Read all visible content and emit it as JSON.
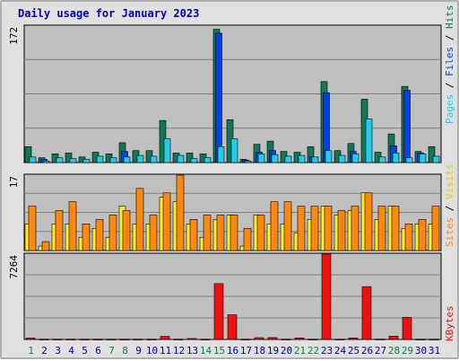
{
  "title": "Daily usage for January 2023",
  "colors": {
    "panel_bg": "#c0c0c0",
    "grid": "#7f7f7f",
    "hits": "#117755",
    "files": "#0044dd",
    "pages": "#22ccee",
    "visits": "#ff8811",
    "sites": "#ffee22",
    "kbytes": "#ee1111",
    "weekday_label": "#0000a0",
    "weekend_label": "#00863c"
  },
  "chart_data": [
    {
      "type": "bar",
      "panel": "top",
      "ymax_label": "172",
      "ymax": 172,
      "legend_side": "right",
      "legend": [
        "Pages",
        "Files",
        "Hits"
      ],
      "categories": [
        "1",
        "2",
        "3",
        "4",
        "5",
        "6",
        "7",
        "8",
        "9",
        "10",
        "11",
        "12",
        "13",
        "14",
        "15",
        "16",
        "17",
        "18",
        "19",
        "20",
        "21",
        "22",
        "23",
        "24",
        "25",
        "26",
        "27",
        "28",
        "29",
        "30",
        "31"
      ],
      "series": [
        {
          "name": "Hits",
          "values": [
            20,
            6,
            11,
            12,
            7,
            13,
            11,
            25,
            15,
            15,
            53,
            12,
            12,
            11,
            168,
            54,
            4,
            23,
            27,
            14,
            13,
            20,
            102,
            15,
            24,
            80,
            13,
            36,
            96,
            14,
            20
          ]
        },
        {
          "name": "Files",
          "values": [
            0,
            4,
            0,
            0,
            0,
            0,
            0,
            14,
            0,
            0,
            0,
            0,
            0,
            0,
            163,
            0,
            3,
            13,
            15,
            0,
            0,
            7,
            88,
            0,
            14,
            0,
            0,
            21,
            91,
            12,
            0
          ]
        },
        {
          "name": "Pages",
          "values": [
            7,
            2,
            6,
            5,
            4,
            8,
            6,
            7,
            9,
            8,
            30,
            9,
            5,
            6,
            20,
            30,
            2,
            11,
            10,
            8,
            9,
            7,
            15,
            9,
            11,
            55,
            7,
            12,
            6,
            11,
            8
          ]
        }
      ]
    },
    {
      "type": "bar",
      "panel": "middle",
      "ymax_label": "17",
      "ymax": 17,
      "legend_side": "right",
      "legend": [
        "Sites",
        "Visits"
      ],
      "categories": [
        "1",
        "2",
        "3",
        "4",
        "5",
        "6",
        "7",
        "8",
        "9",
        "10",
        "11",
        "12",
        "13",
        "14",
        "15",
        "16",
        "17",
        "18",
        "19",
        "20",
        "21",
        "22",
        "23",
        "24",
        "25",
        "26",
        "27",
        "28",
        "29",
        "30",
        "31"
      ],
      "series": [
        {
          "name": "Visits",
          "values": [
            10,
            2,
            9,
            11,
            6,
            7,
            8,
            9,
            14,
            8,
            13,
            17,
            7,
            8,
            8,
            8,
            5,
            8,
            11,
            11,
            10,
            10,
            10,
            9,
            10,
            13,
            10,
            10,
            6,
            7,
            10
          ]
        },
        {
          "name": "Sites",
          "values": [
            6,
            1,
            6,
            6,
            3,
            5,
            3,
            10,
            6,
            6,
            12,
            11,
            6,
            3,
            7,
            8,
            1,
            8,
            6,
            6,
            4,
            7,
            10,
            8,
            9,
            13,
            7,
            10,
            5,
            6,
            6
          ]
        }
      ]
    },
    {
      "type": "bar",
      "panel": "bottom",
      "ymax_label": "7264",
      "ymax": 7264,
      "legend_side": "right",
      "legend": [
        "KBytes"
      ],
      "categories": [
        "1",
        "2",
        "3",
        "4",
        "5",
        "6",
        "7",
        "8",
        "9",
        "10",
        "11",
        "12",
        "13",
        "14",
        "15",
        "16",
        "17",
        "18",
        "19",
        "20",
        "21",
        "22",
        "23",
        "24",
        "25",
        "26",
        "27",
        "28",
        "29",
        "30",
        "31"
      ],
      "series": [
        {
          "name": "KBytes",
          "values": [
            120,
            25,
            25,
            25,
            25,
            25,
            25,
            25,
            25,
            25,
            260,
            25,
            80,
            25,
            4750,
            2100,
            25,
            150,
            160,
            25,
            125,
            25,
            7264,
            25,
            130,
            4500,
            40,
            280,
            1880,
            25,
            25
          ]
        }
      ],
      "day_labels": [
        "1",
        "2",
        "3",
        "4",
        "5",
        "6",
        "7",
        "8",
        "9",
        "10",
        "11",
        "12",
        "13",
        "14",
        "15",
        "16",
        "17",
        "18",
        "19",
        "20",
        "21",
        "22",
        "23",
        "24",
        "25",
        "26",
        "27",
        "28",
        "29",
        "30",
        "31"
      ],
      "weekend_days": [
        "1",
        "7",
        "8",
        "14",
        "15",
        "21",
        "22",
        "28",
        "29"
      ]
    }
  ]
}
